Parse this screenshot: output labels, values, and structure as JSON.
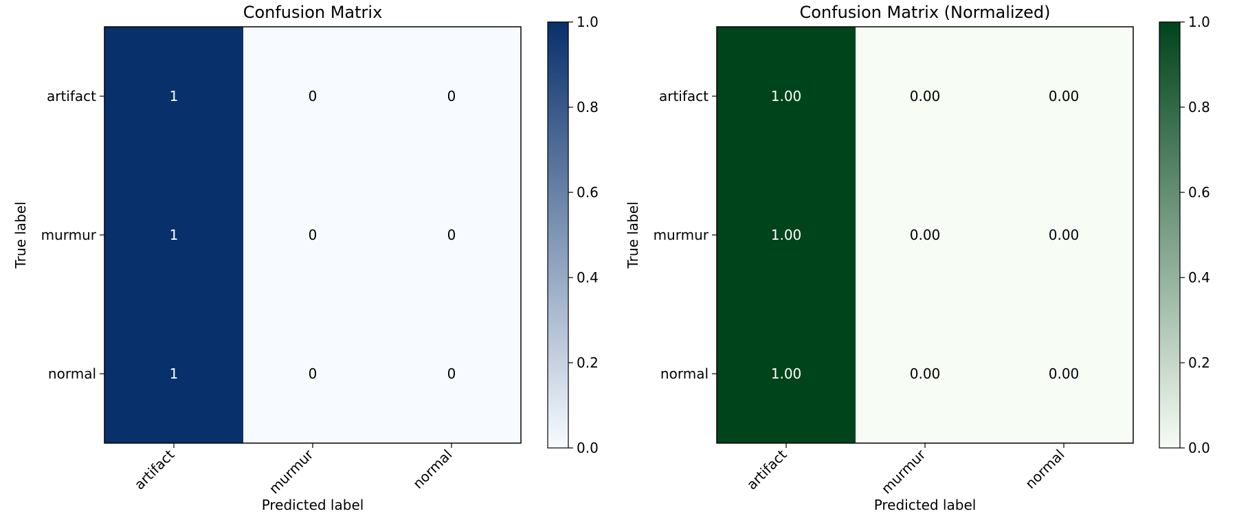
{
  "chart_data": [
    {
      "type": "heatmap",
      "title": "Confusion Matrix",
      "xlabel": "Predicted label",
      "ylabel": "True label",
      "x_categories": [
        "artifact",
        "murmur",
        "normal"
      ],
      "y_categories": [
        "artifact",
        "murmur",
        "normal"
      ],
      "values": [
        [
          1,
          0,
          0
        ],
        [
          1,
          0,
          0
        ],
        [
          1,
          0,
          0
        ]
      ],
      "cell_labels": [
        [
          "1",
          "0",
          "0"
        ],
        [
          "1",
          "0",
          "0"
        ],
        [
          "1",
          "0",
          "0"
        ]
      ],
      "colormap": "Blues",
      "color_low": "#f7fbff",
      "color_high": "#08306b",
      "colorbar_range": [
        0.0,
        1.0
      ],
      "colorbar_ticks": [
        "0.0",
        "0.2",
        "0.4",
        "0.6",
        "0.8",
        "1.0"
      ],
      "grid": false
    },
    {
      "type": "heatmap",
      "title": "Confusion Matrix (Normalized)",
      "xlabel": "Predicted label",
      "ylabel": "True label",
      "x_categories": [
        "artifact",
        "murmur",
        "normal"
      ],
      "y_categories": [
        "artifact",
        "murmur",
        "normal"
      ],
      "values": [
        [
          1.0,
          0.0,
          0.0
        ],
        [
          1.0,
          0.0,
          0.0
        ],
        [
          1.0,
          0.0,
          0.0
        ]
      ],
      "cell_labels": [
        [
          "1.00",
          "0.00",
          "0.00"
        ],
        [
          "1.00",
          "0.00",
          "0.00"
        ],
        [
          "1.00",
          "0.00",
          "0.00"
        ]
      ],
      "colormap": "Greens",
      "color_low": "#f7fcf5",
      "color_high": "#00441b",
      "colorbar_range": [
        0.0,
        1.0
      ],
      "colorbar_ticks": [
        "0.0",
        "0.2",
        "0.4",
        "0.6",
        "0.8",
        "1.0"
      ],
      "grid": false
    }
  ]
}
